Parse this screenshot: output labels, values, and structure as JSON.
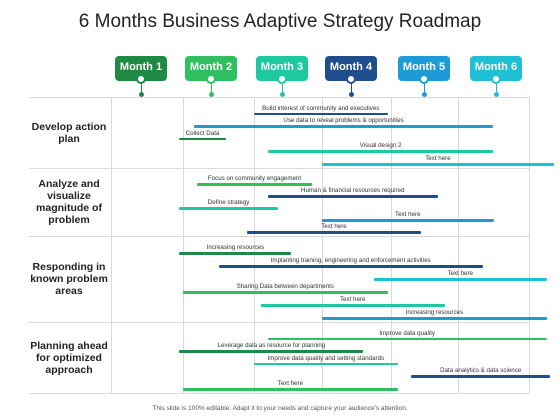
{
  "title": "6 Months Business Adaptive Strategy Roadmap",
  "footer": "This slide is 100% editable. Adapt it to your needs and capture your audience's attention.",
  "colors": {
    "dark_green": "#1e8a44",
    "green": "#2fbf5f",
    "teal": "#1ec8a0",
    "navy": "#1f4e8c",
    "blue": "#1e9bd7",
    "cyan": "#1fc0d6",
    "grid": "#d9d9d9"
  },
  "months": [
    {
      "label": "Month 1",
      "color": "#1e8a44"
    },
    {
      "label": "Month 2",
      "color": "#2fbf5f"
    },
    {
      "label": "Month 3",
      "color": "#1ec8a0"
    },
    {
      "label": "Month 4",
      "color": "#1f4e8c"
    },
    {
      "label": "Month 5",
      "color": "#1e9bd7"
    },
    {
      "label": "Month 6",
      "color": "#1fc0d6"
    }
  ],
  "rows": [
    {
      "label": "Develop action plan",
      "tasks": [
        {
          "label": "Build interest of community and executives",
          "start": 2.0,
          "end": 3.95,
          "color": "#1f4e8c"
        },
        {
          "label": "Use data to reveal problems & opportunities",
          "start": 1.15,
          "end": 5.5,
          "color": "#1e9bd7"
        },
        {
          "label": "Collect Data",
          "start": 0.95,
          "end": 1.6,
          "color": "#1e8a44"
        },
        {
          "label": "Visual design 2",
          "start": 2.2,
          "end": 5.5,
          "color": "#1ec8a0"
        },
        {
          "label": "Text here",
          "start": 3.0,
          "end": 6.35,
          "color": "#1fc0d6"
        }
      ]
    },
    {
      "label": "Analyze and visualize magnitude of problem",
      "tasks": [
        {
          "label": "Focus on community engagement",
          "start": 1.2,
          "end": 2.85,
          "color": "#2fbf5f"
        },
        {
          "label": "Human & financial resources required",
          "start": 2.2,
          "end": 4.7,
          "color": "#1f4e8c"
        },
        {
          "label": "Define strategy",
          "start": 0.95,
          "end": 2.35,
          "color": "#1ec8a0"
        },
        {
          "label": "Text here",
          "start": 3.0,
          "end": 5.5,
          "color": "#1e9bd7"
        },
        {
          "label": "Text here",
          "start": 1.9,
          "end": 4.45,
          "color": "#1f4e8c"
        }
      ]
    },
    {
      "label": "Responding in known problem areas",
      "tasks": [
        {
          "label": "Increasing resources",
          "start": 0.95,
          "end": 2.55,
          "color": "#1e8a44"
        },
        {
          "label": "Implanting training, engineering and enforcement activities",
          "start": 1.5,
          "end": 5.35,
          "color": "#1f4e8c"
        },
        {
          "label": "Text here",
          "start": 3.75,
          "end": 6.25,
          "color": "#1fc0d6"
        },
        {
          "label": "Sharing Data between departments",
          "start": 1.0,
          "end": 3.95,
          "color": "#2fbf5f"
        },
        {
          "label": "Text here",
          "start": 2.1,
          "end": 4.8,
          "color": "#1ec8a0"
        },
        {
          "label": "Increasing resources",
          "start": 3.0,
          "end": 6.25,
          "color": "#1e9bd7"
        }
      ]
    },
    {
      "label": "Planning ahead for optimized approach",
      "tasks": [
        {
          "label": "Improve data quality",
          "start": 2.2,
          "end": 6.25,
          "color": "#2fbf5f"
        },
        {
          "label": "Leverage data as resource for planning",
          "start": 0.95,
          "end": 3.6,
          "color": "#1e8a44"
        },
        {
          "label": "Improve data quality and setting standards",
          "start": 2.0,
          "end": 4.1,
          "color": "#1ec8a0"
        },
        {
          "label": "Data analytics  & data science",
          "start": 4.3,
          "end": 6.3,
          "color": "#1f4e8c"
        },
        {
          "label": "Text here",
          "start": 1.0,
          "end": 4.1,
          "color": "#2fbf5f"
        }
      ]
    }
  ]
}
